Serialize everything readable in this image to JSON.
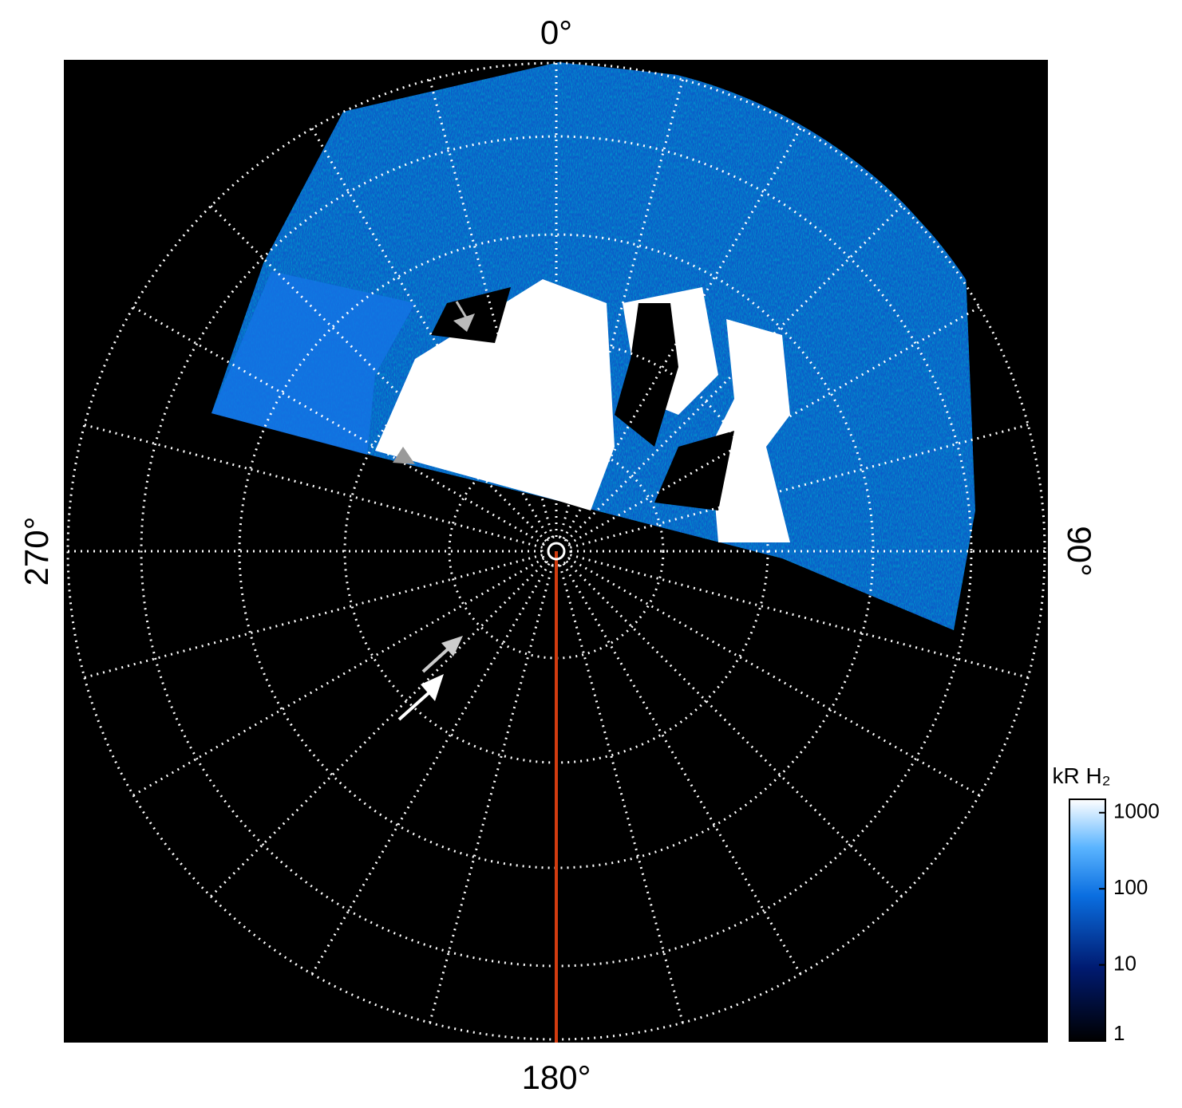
{
  "labels": {
    "top": "0°",
    "right": "90°",
    "bottom": "180°",
    "left": "270°"
  },
  "colorbar": {
    "title": "kR H₂",
    "scale": "log",
    "lim": [
      1,
      1500
    ],
    "ticks": [
      1,
      10,
      100,
      1000
    ]
  }
}
